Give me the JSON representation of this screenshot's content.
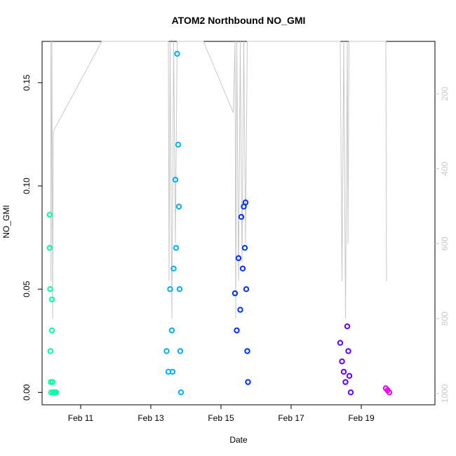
{
  "chart_data": {
    "type": "scatter",
    "title": "ATOM2 Northbound NO_GMI",
    "xlabel": "Date",
    "ylabel": "NO_GMI",
    "x_ticks": [
      "Feb 11",
      "Feb 13",
      "Feb 15",
      "Feb 17",
      "Feb 19"
    ],
    "x_tick_days": [
      11,
      13,
      15,
      17,
      19
    ],
    "xlim": [
      9.9,
      21.1
    ],
    "ylim": [
      -0.006,
      0.17
    ],
    "y_ticks": [
      0.0,
      0.05,
      0.1,
      0.15
    ],
    "y_tick_labels": [
      "0.00",
      "0.05",
      "0.10",
      "0.15"
    ],
    "y2_label": "",
    "y2_ticks": [
      200,
      400,
      600,
      800,
      1000
    ],
    "y2_tick_labels": [
      "200",
      "400",
      "600",
      "800",
      "1000"
    ],
    "y2_lim": [
      1030,
      60
    ],
    "y2_reversed": true,
    "grid": false,
    "series": [
      {
        "color": "#00ffaa",
        "points": [
          [
            10.12,
            0.086
          ],
          [
            10.12,
            0.07
          ],
          [
            10.13,
            0.05
          ],
          [
            10.14,
            0.02
          ],
          [
            10.15,
            0.005
          ],
          [
            10.16,
            0.0
          ],
          [
            10.18,
            0.045
          ],
          [
            10.18,
            0.03
          ],
          [
            10.2,
            0.005
          ],
          [
            10.22,
            0.0
          ],
          [
            10.26,
            0.0
          ],
          [
            10.3,
            0.0
          ]
        ]
      },
      {
        "color": "#00b0ff",
        "points": [
          [
            13.45,
            0.02
          ],
          [
            13.5,
            0.01
          ],
          [
            13.55,
            0.05
          ],
          [
            13.6,
            0.03
          ],
          [
            13.62,
            0.01
          ],
          [
            13.65,
            0.06
          ],
          [
            13.7,
            0.103
          ],
          [
            13.72,
            0.07
          ],
          [
            13.75,
            0.164
          ],
          [
            13.78,
            0.12
          ],
          [
            13.8,
            0.09
          ],
          [
            13.82,
            0.05
          ],
          [
            13.84,
            0.02
          ],
          [
            13.86,
            0.0
          ]
        ]
      },
      {
        "color": "#0033ff",
        "points": [
          [
            15.4,
            0.048
          ],
          [
            15.45,
            0.03
          ],
          [
            15.5,
            0.065
          ],
          [
            15.55,
            0.04
          ],
          [
            15.58,
            0.085
          ],
          [
            15.62,
            0.06
          ],
          [
            15.65,
            0.09
          ],
          [
            15.68,
            0.07
          ],
          [
            15.7,
            0.092
          ],
          [
            15.72,
            0.05
          ],
          [
            15.75,
            0.02
          ],
          [
            15.77,
            0.005
          ]
        ]
      },
      {
        "color": "#6600ff",
        "points": [
          [
            18.4,
            0.024
          ],
          [
            18.45,
            0.015
          ],
          [
            18.5,
            0.01
          ],
          [
            18.55,
            0.005
          ],
          [
            18.6,
            0.032
          ],
          [
            18.63,
            0.02
          ],
          [
            18.66,
            0.008
          ],
          [
            18.7,
            0.0
          ]
        ]
      },
      {
        "color": "#ee00ee",
        "points": [
          [
            19.7,
            0.002
          ],
          [
            19.75,
            0.001
          ],
          [
            19.8,
            0.0
          ]
        ]
      }
    ],
    "altitude_series": {
      "color": "#c8c8c8",
      "points": [
        [
          10.15,
          60
        ],
        [
          10.15,
          700
        ],
        [
          10.18,
          60
        ],
        [
          10.2,
          800
        ],
        [
          10.22,
          300
        ],
        [
          11.6,
          60
        ],
        [
          13.5,
          60
        ],
        [
          13.52,
          700
        ],
        [
          13.55,
          60
        ],
        [
          13.6,
          800
        ],
        [
          13.65,
          60
        ],
        [
          13.7,
          600
        ],
        [
          13.75,
          60
        ],
        [
          14.5,
          60
        ],
        [
          15.35,
          250
        ],
        [
          15.4,
          60
        ],
        [
          15.42,
          800
        ],
        [
          15.45,
          60
        ],
        [
          15.5,
          700
        ],
        [
          15.55,
          60
        ],
        [
          15.6,
          650
        ],
        [
          15.65,
          60
        ],
        [
          15.7,
          600
        ],
        [
          15.75,
          60
        ],
        [
          18.4,
          60
        ],
        [
          18.45,
          700
        ],
        [
          18.5,
          60
        ],
        [
          18.55,
          800
        ],
        [
          18.6,
          60
        ],
        [
          18.62,
          600
        ],
        [
          18.65,
          60
        ],
        [
          19.7,
          60
        ],
        [
          19.72,
          700
        ]
      ]
    }
  }
}
